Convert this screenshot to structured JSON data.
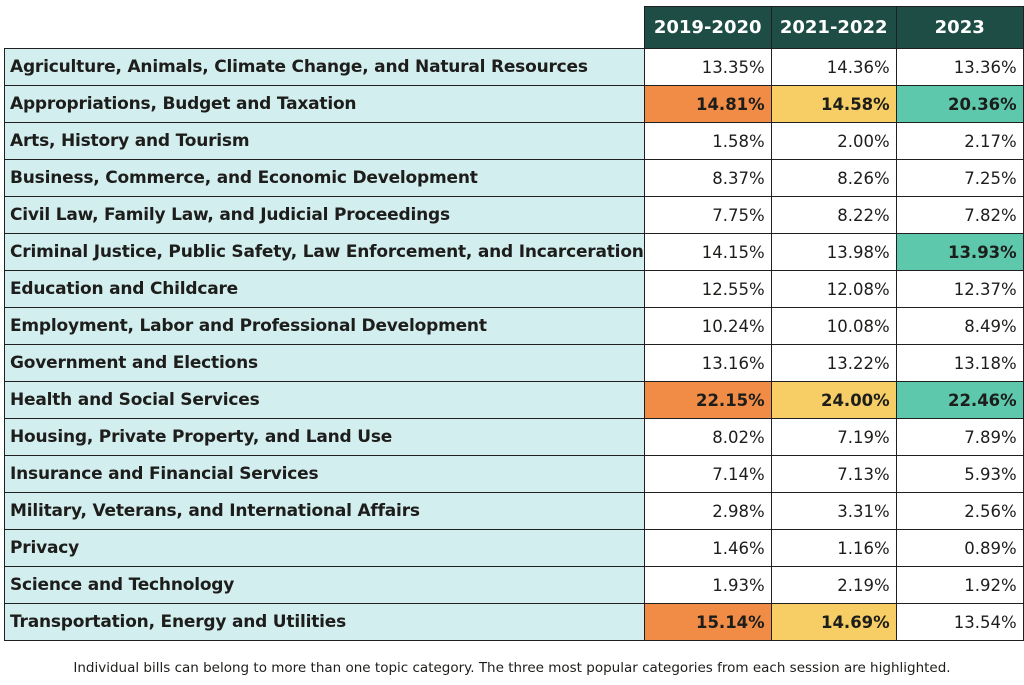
{
  "chart_data": {
    "type": "table",
    "columns": [
      "2019-2020",
      "2021-2022",
      "2023"
    ],
    "highlight_colors": [
      "#f08c45",
      "#f6ce65",
      "#5ec8ac"
    ],
    "rows": [
      {
        "category": "Agriculture, Animals, Climate Change, and Natural Resources",
        "values": [
          "13.35%",
          "14.36%",
          "13.36%"
        ],
        "highlighted": [
          false,
          false,
          false
        ]
      },
      {
        "category": "Appropriations, Budget and Taxation",
        "values": [
          "14.81%",
          "14.58%",
          "20.36%"
        ],
        "highlighted": [
          true,
          true,
          true
        ]
      },
      {
        "category": "Arts, History and Tourism",
        "values": [
          "1.58%",
          "2.00%",
          "2.17%"
        ],
        "highlighted": [
          false,
          false,
          false
        ]
      },
      {
        "category": "Business, Commerce, and Economic Development",
        "values": [
          "8.37%",
          "8.26%",
          "7.25%"
        ],
        "highlighted": [
          false,
          false,
          false
        ]
      },
      {
        "category": "Civil Law, Family Law, and Judicial Proceedings",
        "values": [
          "7.75%",
          "8.22%",
          "7.82%"
        ],
        "highlighted": [
          false,
          false,
          false
        ]
      },
      {
        "category": "Criminal Justice, Public Safety, Law Enforcement, and Incarceration",
        "values": [
          "14.15%",
          "13.98%",
          "13.93%"
        ],
        "highlighted": [
          false,
          false,
          true
        ]
      },
      {
        "category": "Education and Childcare",
        "values": [
          "12.55%",
          "12.08%",
          "12.37%"
        ],
        "highlighted": [
          false,
          false,
          false
        ]
      },
      {
        "category": "Employment, Labor and Professional Development",
        "values": [
          "10.24%",
          "10.08%",
          "8.49%"
        ],
        "highlighted": [
          false,
          false,
          false
        ]
      },
      {
        "category": "Government and Elections",
        "values": [
          "13.16%",
          "13.22%",
          "13.18%"
        ],
        "highlighted": [
          false,
          false,
          false
        ]
      },
      {
        "category": "Health and Social Services",
        "values": [
          "22.15%",
          "24.00%",
          "22.46%"
        ],
        "highlighted": [
          true,
          true,
          true
        ]
      },
      {
        "category": "Housing, Private Property, and Land Use",
        "values": [
          "8.02%",
          "7.19%",
          "7.89%"
        ],
        "highlighted": [
          false,
          false,
          false
        ]
      },
      {
        "category": "Insurance and Financial Services",
        "values": [
          "7.14%",
          "7.13%",
          "5.93%"
        ],
        "highlighted": [
          false,
          false,
          false
        ]
      },
      {
        "category": "Military, Veterans, and International Affairs",
        "values": [
          "2.98%",
          "3.31%",
          "2.56%"
        ],
        "highlighted": [
          false,
          false,
          false
        ]
      },
      {
        "category": "Privacy",
        "values": [
          "1.46%",
          "1.16%",
          "0.89%"
        ],
        "highlighted": [
          false,
          false,
          false
        ]
      },
      {
        "category": "Science and Technology",
        "values": [
          "1.93%",
          "2.19%",
          "1.92%"
        ],
        "highlighted": [
          false,
          false,
          false
        ]
      },
      {
        "category": "Transportation, Energy and Utilities",
        "values": [
          "15.14%",
          "14.69%",
          "13.54%"
        ],
        "highlighted": [
          true,
          true,
          false
        ]
      }
    ],
    "footnote": "Individual bills can belong to more than one topic category. The three most popular categories from each session are highlighted."
  }
}
